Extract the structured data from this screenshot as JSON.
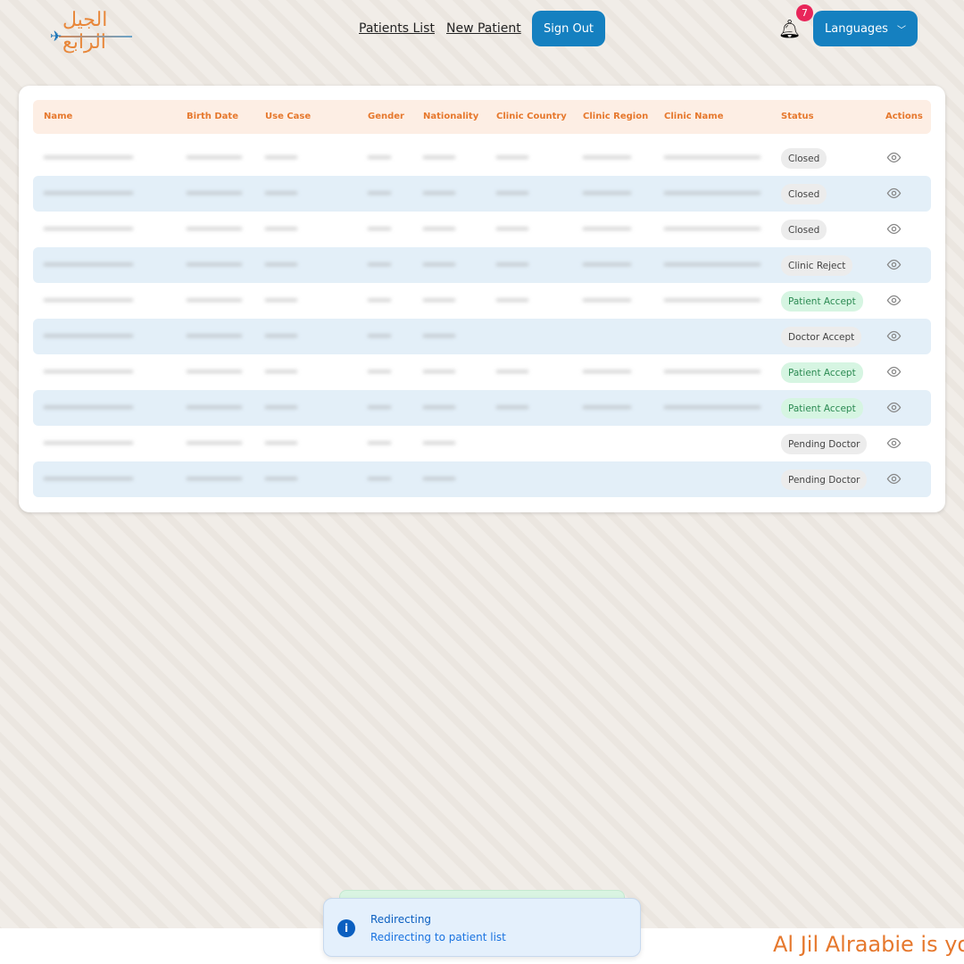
{
  "logo": {
    "text": "الجيل الرابع"
  },
  "nav": {
    "patients_list": "Patients List",
    "new_patient": "New Patient",
    "sign_out": "Sign Out",
    "languages": "Languages",
    "notification_count": "7"
  },
  "table": {
    "headers": [
      "Name",
      "Birth Date",
      "Use Case",
      "Gender",
      "Nationality",
      "Clinic Country",
      "Clinic Region",
      "Clinic Name",
      "Status",
      "Actions"
    ],
    "rows": [
      {
        "status": "Closed",
        "tone": "grey"
      },
      {
        "status": "Closed",
        "tone": "grey"
      },
      {
        "status": "Closed",
        "tone": "grey"
      },
      {
        "status": "Clinic Reject",
        "tone": "grey"
      },
      {
        "status": "Patient Accept",
        "tone": "green"
      },
      {
        "status": "Doctor Accept",
        "tone": "grey"
      },
      {
        "status": "Patient Accept",
        "tone": "green"
      },
      {
        "status": "Patient Accept",
        "tone": "green"
      },
      {
        "status": "Pending Doctor",
        "tone": "grey"
      },
      {
        "status": "Pending Doctor",
        "tone": "grey"
      }
    ]
  },
  "toast": {
    "title": "Redirecting",
    "message": "Redirecting to patient list"
  },
  "footer": {
    "marquee": "Al Jil Alraabie is yo"
  },
  "colors": {
    "accent": "#1580c0",
    "header_text": "#e6782d",
    "green_status": "#2b8a52"
  }
}
